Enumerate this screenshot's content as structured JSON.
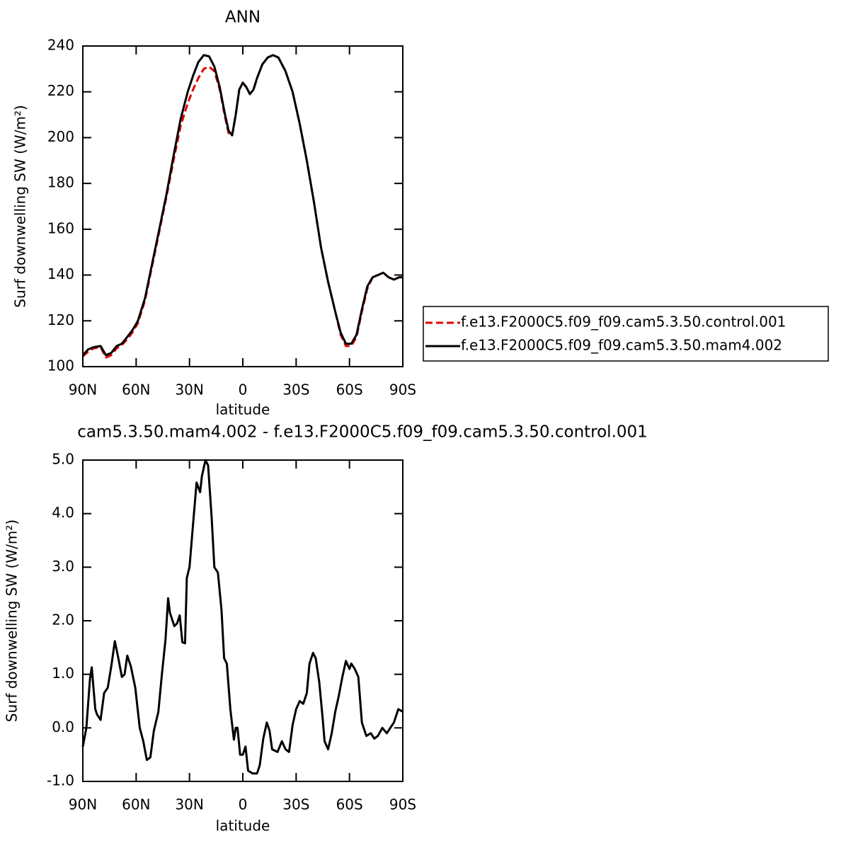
{
  "chart_data": [
    {
      "type": "line",
      "title": "ANN",
      "xlabel": "latitude",
      "ylabel": "Surf downwelling SW (W/m²)",
      "xlim": [
        90,
        -90
      ],
      "xticks": [
        {
          "value": 90,
          "label": "90N"
        },
        {
          "value": 60,
          "label": "60N"
        },
        {
          "value": 30,
          "label": "30N"
        },
        0,
        {
          "value": -30,
          "label": "30S"
        },
        {
          "value": -60,
          "label": "60S"
        },
        {
          "value": -90,
          "label": "90S"
        }
      ],
      "ylim": [
        100,
        240
      ],
      "yticks": [
        100,
        120,
        140,
        160,
        180,
        200,
        220,
        240
      ],
      "legend": "right",
      "x": [
        90,
        87,
        84,
        80,
        77,
        74,
        71,
        68,
        65,
        62,
        59,
        55,
        51,
        47,
        43,
        39,
        35,
        31,
        28,
        25,
        22,
        19,
        16,
        13,
        10,
        8,
        6,
        4,
        2,
        0,
        -2,
        -4,
        -6,
        -8,
        -11,
        -14,
        -17,
        -20,
        -24,
        -28,
        -32,
        -36,
        -40,
        -44,
        -48,
        -52,
        -55,
        -58,
        -61,
        -64,
        -67,
        -70,
        -73,
        -76,
        -79,
        -82,
        -85,
        -88,
        -90
      ],
      "series": [
        {
          "name": "f.e13.F2000C5.f09_f09.cam5.3.50.control.001",
          "color": "#e00000",
          "dash": true,
          "values": [
            104.5,
            106.5,
            108,
            108.5,
            104,
            105,
            108,
            109.5,
            112,
            115,
            119,
            129,
            144,
            159,
            174,
            190,
            205,
            215,
            221,
            226,
            230,
            231,
            229,
            221,
            209,
            202,
            201,
            210,
            221,
            224,
            222,
            219,
            221,
            226,
            232,
            235,
            236,
            235,
            229,
            220,
            206,
            190,
            172,
            152,
            137,
            124,
            114,
            109,
            109,
            113,
            124,
            134,
            139,
            140,
            141,
            139,
            138,
            139,
            139
          ]
        },
        {
          "name": "f.e13.F2000C5.f09_f09.cam5.3.50.mam4.002",
          "color": "#000000",
          "dash": false,
          "values": [
            105,
            107.5,
            108.5,
            109,
            105,
            106,
            109,
            110,
            113,
            116,
            120,
            130,
            145,
            160,
            175,
            192,
            208,
            220,
            227,
            233,
            236,
            235.5,
            231,
            222,
            210,
            203,
            201,
            210,
            221,
            224,
            222,
            219,
            221,
            226,
            232,
            235,
            236,
            235,
            229,
            220,
            206,
            190,
            172,
            152,
            137,
            124,
            115,
            110,
            110,
            114,
            125,
            135,
            139,
            140,
            141,
            139,
            138,
            139,
            139
          ]
        }
      ]
    },
    {
      "type": "line",
      "title": "cam5.3.50.mam4.002 - f.e13.F2000C5.f09_f09.cam5.3.50.control.001",
      "xlabel": "latitude",
      "ylabel": "Surf downwelling SW (W/m²)",
      "xlim": [
        90,
        -90
      ],
      "xticks": [
        {
          "value": 90,
          "label": "90N"
        },
        {
          "value": 60,
          "label": "60N"
        },
        {
          "value": 30,
          "label": "30N"
        },
        0,
        {
          "value": -30,
          "label": "30S"
        },
        {
          "value": -60,
          "label": "60S"
        },
        {
          "value": -90,
          "label": "90S"
        }
      ],
      "ylim": [
        -1,
        5
      ],
      "yticks": [
        {
          "value": -1,
          "label": "-1.0"
        },
        {
          "value": 0,
          "label": "0.0"
        },
        {
          "value": 1,
          "label": "1.0"
        },
        {
          "value": 2,
          "label": "2.0"
        },
        {
          "value": 3,
          "label": "3.0"
        },
        {
          "value": 4,
          "label": "4.0"
        },
        {
          "value": 5,
          "label": "5.0"
        }
      ],
      "x": [
        90,
        88,
        86,
        85,
        83,
        82,
        80,
        78,
        76,
        74,
        72,
        70,
        68,
        66.5,
        65,
        63,
        60.5,
        58,
        56,
        54,
        52,
        50,
        47.5,
        45.5,
        43.5,
        42,
        41,
        38.5,
        37,
        35.5,
        34,
        32.5,
        31.5,
        30,
        28,
        26,
        24,
        23,
        21,
        19.5,
        17.5,
        16,
        14,
        12,
        10.5,
        9,
        7,
        5,
        4,
        3,
        1.5,
        0,
        -1.5,
        -3,
        -5.5,
        -8,
        -9.5,
        -11.5,
        -13.5,
        -15,
        -16.5,
        -19.5,
        -22,
        -24,
        -26,
        -28,
        -30,
        -32,
        -34,
        -36,
        -37.5,
        -39.5,
        -41,
        -43,
        -45,
        -46,
        -48,
        -50,
        -52,
        -54,
        -56,
        -58,
        -60,
        -61,
        -63,
        -65,
        -67,
        -69.5,
        -72,
        -74,
        -76,
        -78.5,
        -81,
        -83,
        -85,
        -87.5,
        -90
      ],
      "series": [
        {
          "color": "#000000",
          "dash": false,
          "values": [
            -0.35,
            0,
            0.9,
            1.13,
            0.35,
            0.25,
            0.15,
            0.65,
            0.75,
            1.15,
            1.62,
            1.3,
            0.95,
            1.0,
            1.35,
            1.15,
            0.75,
            0,
            -0.25,
            -0.6,
            -0.55,
            -0.05,
            0.3,
            1.0,
            1.65,
            2.42,
            2.15,
            1.9,
            1.95,
            2.1,
            1.6,
            1.58,
            2.8,
            3.0,
            3.8,
            4.58,
            4.4,
            4.7,
            5.0,
            4.9,
            3.9,
            3.0,
            2.9,
            2.2,
            1.3,
            1.2,
            0.35,
            -0.22,
            0,
            0,
            -0.5,
            -0.5,
            -0.35,
            -0.8,
            -0.85,
            -0.85,
            -0.7,
            -0.2,
            0.1,
            -0.05,
            -0.4,
            -0.45,
            -0.25,
            -0.4,
            -0.45,
            0.05,
            0.35,
            0.5,
            0.45,
            0.65,
            1.2,
            1.4,
            1.3,
            0.85,
            0.15,
            -0.25,
            -0.4,
            -0.1,
            0.3,
            0.6,
            0.95,
            1.25,
            1.1,
            1.2,
            1.1,
            0.95,
            0.1,
            -0.15,
            -0.1,
            -0.2,
            -0.15,
            0,
            -0.1,
            0,
            0.1,
            0.35,
            0.3
          ]
        }
      ]
    }
  ]
}
